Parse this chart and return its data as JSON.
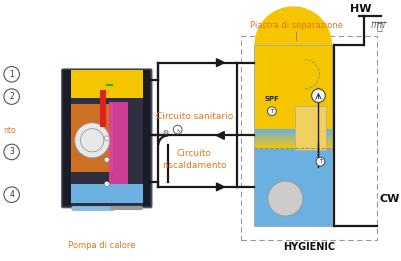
{
  "bg_color": "#ffffff",
  "line_color": "#1a1a1a",
  "sanitary_label": "Circuito sanitario",
  "heating_label": "Circuito\nriscaldamento",
  "pump_label": "Pompa di calore",
  "hygienic_label": "HYGIENIC",
  "piastra_label": "Piastra di separazione",
  "hw_label": "HW",
  "cw_label": "CW",
  "spf_label": "SPF",
  "label_color": "#e07820",
  "yellow_color": "#f5c500",
  "blue_color": "#6ab0e0",
  "light_blue_color": "#a8d4f0",
  "gray_color": "#aaaaaa",
  "dark_color": "#2e3042",
  "darker_color": "#1a1c28",
  "red_color": "#dd2222",
  "pink_color": "#e040a0",
  "orange_color": "#e07820",
  "dark_blue": "#3060a0",
  "pipe_lw": 1.6,
  "valve_size": 5,
  "hw_color": "#1a7abf",
  "cw_color": "#1a7abf"
}
